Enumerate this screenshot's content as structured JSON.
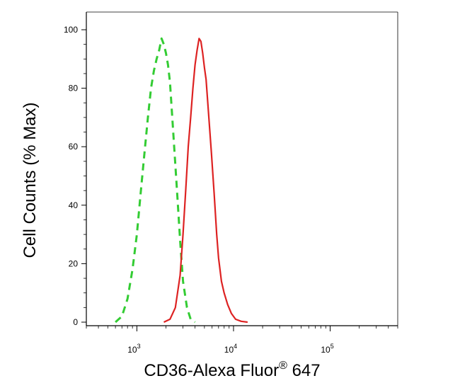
{
  "chart_data": {
    "type": "line",
    "title": "",
    "xlabel": "CD36-Alexa Fluor",
    "xlabel_superscript": "®",
    "xlabel_suffix": " 647",
    "ylabel": "Cell Counts (% Max)",
    "x_scale": "log",
    "xlim": [
      300,
      500000
    ],
    "ylim": [
      0,
      100
    ],
    "y_ticks": [
      0,
      20,
      40,
      60,
      80,
      100
    ],
    "y_tick_labels": [
      "0",
      "20",
      "40",
      "60",
      "80",
      "100"
    ],
    "x_ticks": [
      1000,
      10000,
      100000
    ],
    "x_tick_labels": [
      {
        "base": "10",
        "exp": "3"
      },
      {
        "base": "10",
        "exp": "4"
      },
      {
        "base": "10",
        "exp": "5"
      }
    ],
    "grid": false,
    "legend": "none",
    "series": [
      {
        "style": "dashed",
        "color": "#33cc33",
        "x": [
          600,
          700,
          800,
          900,
          1000,
          1100,
          1200,
          1300,
          1400,
          1500,
          1600,
          1700,
          1800,
          1900,
          2000,
          2100,
          2200,
          2400,
          2600,
          2800,
          3000,
          3300,
          3600,
          4000
        ],
        "y": [
          0,
          2,
          8,
          18,
          30,
          45,
          58,
          70,
          80,
          86,
          90,
          93,
          97,
          95,
          92,
          88,
          82,
          63,
          45,
          28,
          14,
          5,
          1,
          0
        ]
      },
      {
        "style": "solid",
        "color": "#dd2222",
        "x": [
          1900,
          2200,
          2500,
          2800,
          3000,
          3200,
          3400,
          3600,
          3800,
          4000,
          4200,
          4400,
          4600,
          4800,
          5000,
          5200,
          5500,
          5900,
          6300,
          6700,
          7000,
          7500,
          8000,
          8700,
          9500,
          10500,
          12000,
          14000
        ],
        "y": [
          0,
          1,
          5,
          16,
          30,
          45,
          60,
          70,
          80,
          88,
          93,
          97,
          96,
          92,
          87,
          83,
          72,
          58,
          44,
          30,
          22,
          14,
          10,
          6,
          3,
          1,
          0.3,
          0
        ]
      }
    ]
  }
}
